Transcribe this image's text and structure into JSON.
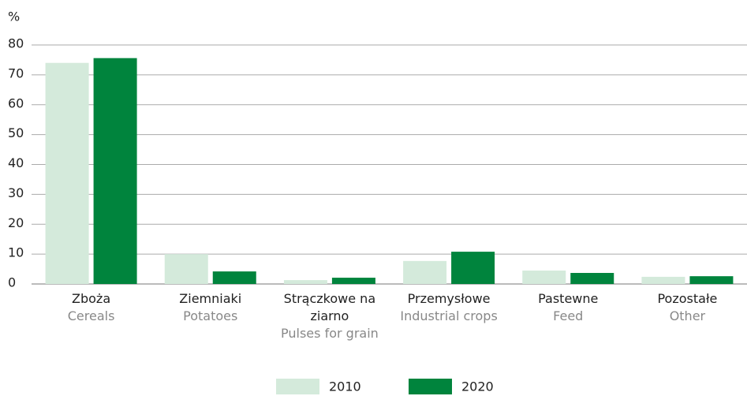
{
  "chart_data": {
    "type": "bar",
    "y_label": "%",
    "categories": [
      "Zboża",
      "Ziemniaki",
      "Strączkowe na ziarno",
      "Przemysłowe",
      "Pastewne",
      "Pozostałe"
    ],
    "category_translations": [
      "Cereals",
      "Potatoes",
      "Pulses for grain",
      "Industrial crops",
      "Feed",
      "Other"
    ],
    "series": [
      {
        "name": "2010",
        "color": "#d4eadb",
        "values": [
          74,
          10,
          1.3,
          7.7,
          4.5,
          2.4
        ]
      },
      {
        "name": "2020",
        "color": "#00843d",
        "values": [
          75.6,
          4.2,
          2.1,
          10.8,
          3.7,
          2.6
        ]
      }
    ],
    "ylim": [
      0,
      80
    ],
    "yticks": [
      0,
      10,
      20,
      30,
      40,
      50,
      60,
      70,
      80
    ],
    "grid": true
  }
}
